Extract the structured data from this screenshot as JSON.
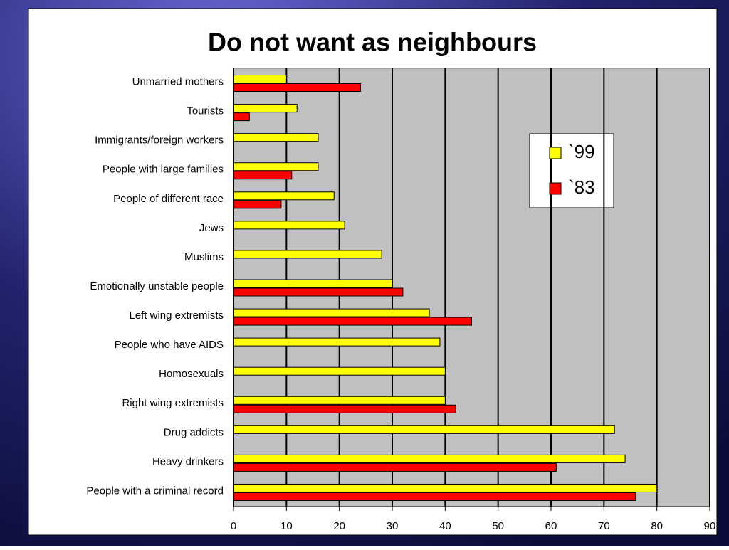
{
  "chart_data": {
    "type": "hbar",
    "title": "Do not want as neighbours",
    "categories": [
      "Unmarried mothers",
      "Tourists",
      "Immigrants/foreign workers",
      "People with large families",
      "People of different race",
      "Jews",
      "Muslims",
      "Emotionally unstable people",
      "Left wing extremists",
      "People who have AIDS",
      "Homosexuals",
      "Right wing extremists",
      "Drug addicts",
      "Heavy drinkers",
      "People with a criminal record"
    ],
    "series": [
      {
        "name": "`99",
        "color": "#ffff00",
        "values": [
          10,
          12,
          16,
          16,
          19,
          21,
          28,
          30,
          37,
          39,
          40,
          40,
          72,
          74,
          80
        ]
      },
      {
        "name": "`83",
        "color": "#ff0000",
        "values": [
          24,
          3,
          null,
          11,
          9,
          null,
          null,
          32,
          45,
          null,
          null,
          42,
          null,
          61,
          76
        ]
      }
    ],
    "xlim": [
      0,
      90
    ],
    "xticks": [
      0,
      10,
      20,
      30,
      40,
      50,
      60,
      70,
      80,
      90
    ],
    "grid": true,
    "legend": "upper right"
  }
}
